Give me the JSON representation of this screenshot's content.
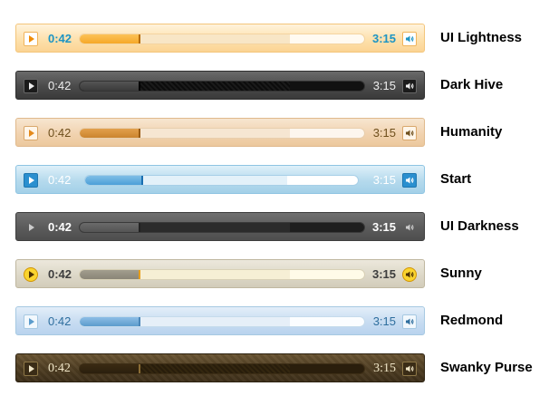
{
  "current_time": "0:42",
  "duration": "3:15",
  "progress": 0.21,
  "buffered": 0.74,
  "icons": {
    "play": "play-icon",
    "volume": "speaker-icon"
  },
  "themes": [
    {
      "name": "UI Lightness",
      "colors": {
        "bg": "#fde0ac",
        "accent": "#f6a828",
        "time": "#1c94c4"
      }
    },
    {
      "name": "Dark Hive",
      "colors": {
        "bg": "#4a4a4a",
        "accent": "#1a1a1a",
        "time": "#eeeeee"
      }
    },
    {
      "name": "Humanity",
      "colors": {
        "bg": "#f1d3b0",
        "accent": "#cb842e",
        "time": "#6e4f1c"
      }
    },
    {
      "name": "Start",
      "colors": {
        "bg": "#b5daed",
        "accent": "#2694e8",
        "time": "#ffffff"
      }
    },
    {
      "name": "UI Darkness",
      "colors": {
        "bg": "#5b5b5b",
        "accent": "#2b2b2b",
        "time": "#ffffff"
      }
    },
    {
      "name": "Sunny",
      "colors": {
        "bg": "#ddd8c8",
        "accent": "#fad42e",
        "time": "#3d3d3d"
      }
    },
    {
      "name": "Redmond",
      "colors": {
        "bg": "#c7dcf1",
        "accent": "#5c9ccc",
        "time": "#2e6e9e"
      }
    },
    {
      "name": "Swanky Purse",
      "colors": {
        "bg": "#4e3d22",
        "accent": "#2b1f0e",
        "time": "#f0e6c8"
      }
    }
  ]
}
